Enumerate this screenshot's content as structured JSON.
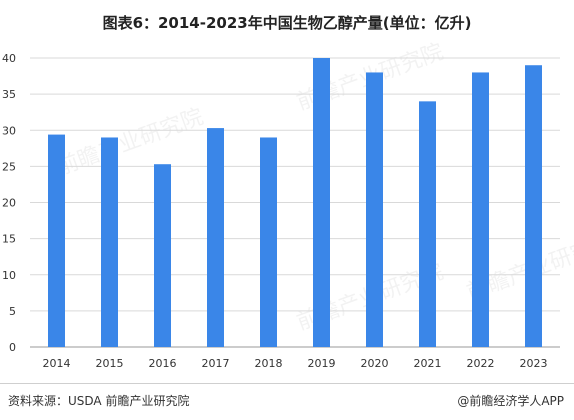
{
  "title": "图表6：2014-2023年中国生物乙醇产量(单位：亿升)",
  "footer": {
    "source": "资料来源：USDA 前瞻产业研究院",
    "brand": "@前瞻经济学人APP"
  },
  "watermark": "前瞻产业研究院",
  "colors": {
    "bar": "#3a86e8",
    "grid": "#d9d9d9",
    "axis": "#999999"
  },
  "chart_data": {
    "type": "bar",
    "title": "图表6：2014-2023年中国生物乙醇产量(单位：亿升)",
    "categories": [
      "2014",
      "2015",
      "2016",
      "2017",
      "2018",
      "2019",
      "2020",
      "2021",
      "2022",
      "2023"
    ],
    "values": [
      29.4,
      29.0,
      25.3,
      30.3,
      29.0,
      40.0,
      38.0,
      34.0,
      38.0,
      39.0
    ],
    "ylim": [
      0,
      40
    ],
    "yticks": [
      "0",
      "5",
      "10",
      "15",
      "20",
      "25",
      "30",
      "35",
      "40"
    ],
    "grid": true,
    "xlabel": "",
    "ylabel": ""
  }
}
